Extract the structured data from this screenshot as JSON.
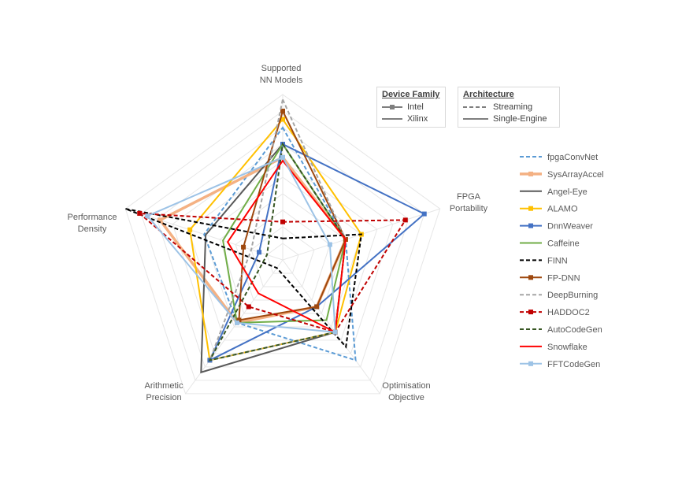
{
  "chart_data": {
    "type": "radar",
    "axes": [
      "Supported NN Models",
      "FPGA Portability",
      "Optimisation Objective",
      "Arithmetic Precision",
      "Performance Density"
    ],
    "axis_labels": [
      [
        "Supported",
        "NN Models"
      ],
      [
        "FPGA",
        "Portability"
      ],
      [
        "Optimisation",
        "Objective"
      ],
      [
        "Arithmetic",
        "Precision"
      ],
      [
        "Performance",
        "Density"
      ]
    ],
    "range": [
      0,
      10
    ],
    "grid": true,
    "legend_placement": "right",
    "series": [
      {
        "name": "fpgaConvNet",
        "color": "#5B9BD5",
        "dash": true,
        "marker": false,
        "values": [
          8,
          4,
          7.5,
          4.7,
          5
        ]
      },
      {
        "name": "SysArrayAccel",
        "color": "#F4B183",
        "dash": false,
        "marker": true,
        "thick": true,
        "values": [
          6.2,
          4,
          3.5,
          4.7,
          7.8
        ]
      },
      {
        "name": "Angel-Eye",
        "color": "#595959",
        "dash": false,
        "marker": false,
        "values": [
          7,
          4,
          5.4,
          8.4,
          4.9
        ]
      },
      {
        "name": "ALAMO",
        "color": "#FFC000",
        "dash": false,
        "marker": true,
        "values": [
          8.5,
          5,
          5.4,
          7.5,
          5.9
        ]
      },
      {
        "name": "DnnWeaver",
        "color": "#4472C4",
        "dash": false,
        "marker": true,
        "values": [
          7,
          9,
          3.5,
          7.5,
          1.5
        ]
      },
      {
        "name": "Caffeine",
        "color": "#70AD47",
        "dash": false,
        "marker": false,
        "values": [
          7,
          4,
          4.5,
          4.7,
          3.8
        ]
      },
      {
        "name": "FINN",
        "color": "#000000",
        "dash": true,
        "marker": false,
        "values": [
          1.3,
          5,
          6.5,
          0.6,
          10
        ]
      },
      {
        "name": "FP-DNN",
        "color": "#9E480E",
        "dash": false,
        "marker": true,
        "values": [
          9,
          4,
          3.5,
          4.5,
          2.5
        ]
      },
      {
        "name": "DeepBurning",
        "color": "#A5A5A5",
        "dash": true,
        "marker": false,
        "values": [
          9.7,
          4,
          5.4,
          7.5,
          2
        ]
      },
      {
        "name": "HADDOC2",
        "color": "#C00000",
        "dash": true,
        "marker": true,
        "values": [
          2.3,
          7.8,
          5.4,
          3.5,
          9.1
        ]
      },
      {
        "name": "AutoCodeGen",
        "color": "#375623",
        "dash": true,
        "marker": false,
        "values": [
          7,
          4,
          5.4,
          7.5,
          1
        ]
      },
      {
        "name": "Snowflake",
        "color": "#FF0000",
        "dash": false,
        "marker": false,
        "values": [
          6,
          4,
          5.4,
          2.5,
          3.5
        ]
      },
      {
        "name": "FFTCodeGen",
        "color": "#9DC3E6",
        "dash": false,
        "marker": true,
        "values": [
          6.2,
          3,
          5.4,
          4.7,
          8.6
        ]
      }
    ],
    "legend_device": {
      "title": "Device Family",
      "items": [
        "Intel",
        "Xilinx"
      ]
    },
    "legend_arch": {
      "title": "Architecture",
      "items": [
        "Streaming",
        "Single-Engine"
      ]
    }
  }
}
